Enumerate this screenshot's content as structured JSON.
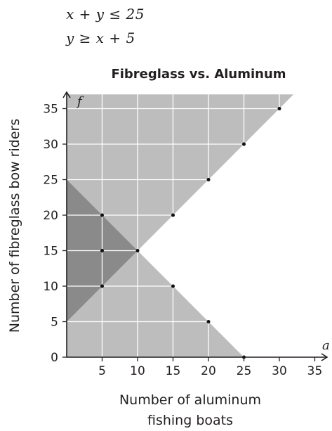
{
  "inequalities": [
    "x + y ≤ 25",
    "y ≥ x + 5"
  ],
  "chart_data": {
    "type": "scatter",
    "title": "Fibreglass vs. Aluminum",
    "xlabel_lines": [
      "Number of aluminum",
      "fishing boats"
    ],
    "ylabel": "Number of fibreglass bow riders",
    "x_var": "a",
    "y_var": "f",
    "xlim": [
      0,
      37
    ],
    "ylim": [
      0,
      37
    ],
    "x_ticks": [
      5,
      10,
      15,
      20,
      25,
      30,
      35
    ],
    "y_ticks": [
      0,
      5,
      10,
      15,
      20,
      25,
      30,
      35
    ],
    "grid": true,
    "regions": [
      {
        "name": "x + y ≤ 25",
        "vertices": [
          [
            0,
            0
          ],
          [
            25,
            0
          ],
          [
            0,
            25
          ]
        ],
        "color": "#bdbdbd"
      },
      {
        "name": "y ≥ x + 5",
        "vertices": [
          [
            0,
            5
          ],
          [
            32,
            37
          ],
          [
            0,
            37
          ]
        ],
        "color": "#bdbdbd"
      },
      {
        "name": "overlap",
        "vertices": [
          [
            0,
            5
          ],
          [
            10,
            15
          ],
          [
            0,
            25
          ]
        ],
        "color": "#8a8a8a"
      }
    ],
    "points": [
      {
        "x": 5,
        "y": 10
      },
      {
        "x": 5,
        "y": 15
      },
      {
        "x": 5,
        "y": 20
      },
      {
        "x": 10,
        "y": 15
      },
      {
        "x": 15,
        "y": 10
      },
      {
        "x": 15,
        "y": 20
      },
      {
        "x": 20,
        "y": 5
      },
      {
        "x": 20,
        "y": 25
      },
      {
        "x": 25,
        "y": 0
      },
      {
        "x": 25,
        "y": 30
      },
      {
        "x": 30,
        "y": 35
      }
    ],
    "colors": {
      "grid": "#ffffff",
      "point": "#111111",
      "axis": "#231f20"
    }
  }
}
